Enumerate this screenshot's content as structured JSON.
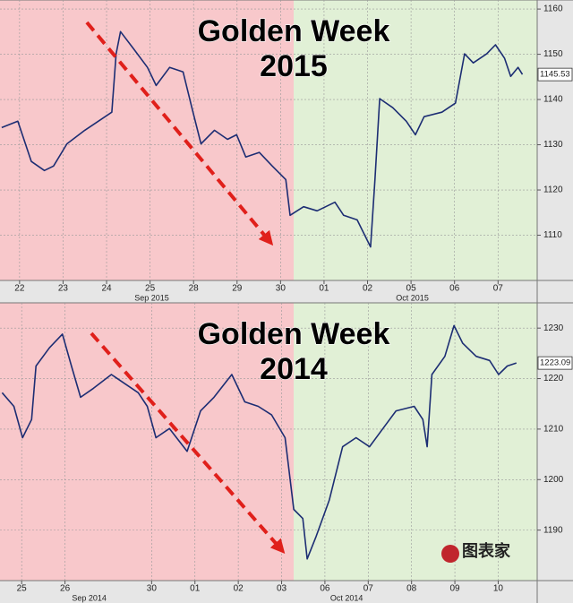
{
  "chart_data": [
    {
      "type": "line",
      "title": "Golden Week",
      "subtitle": "2015",
      "x": [
        -0.41,
        -0.04,
        0.27,
        0.57,
        0.78,
        1.09,
        1.5,
        1.81,
        2.12,
        2.22,
        2.32,
        2.63,
        2.94,
        3.14,
        3.45,
        3.76,
        3.96,
        4.17,
        4.48,
        4.78,
        4.99,
        5.2,
        5.51,
        5.81,
        6.12,
        6.22,
        6.53,
        6.84,
        7.25,
        7.45,
        7.76,
        8.07,
        8.17,
        8.28,
        8.58,
        8.89,
        9.1,
        9.3,
        9.71,
        10.02,
        10.23,
        10.43,
        10.74,
        10.94,
        11.15,
        11.29,
        11.46,
        11.56
      ],
      "values": [
        1133.8,
        1135.2,
        1126.3,
        1124.3,
        1125.3,
        1130.2,
        1133.2,
        1135.2,
        1137.2,
        1150.1,
        1155.0,
        1151.1,
        1147.1,
        1143.1,
        1147.1,
        1146.1,
        1138.2,
        1130.2,
        1133.2,
        1131.2,
        1132.2,
        1127.3,
        1128.3,
        1125.3,
        1122.3,
        1114.4,
        1116.3,
        1115.4,
        1117.3,
        1114.4,
        1113.4,
        1107.4,
        1122.3,
        1140.2,
        1138.2,
        1135.2,
        1132.2,
        1136.2,
        1137.2,
        1139.2,
        1150.1,
        1148.1,
        1150.1,
        1152.1,
        1149.1,
        1145.1,
        1147.1,
        1145.53
      ],
      "color": "#1c2d73",
      "xlim": [
        -0.45,
        11.9
      ],
      "xticks": [
        {
          "value": 0,
          "label": "22"
        },
        {
          "value": 1,
          "label": "23"
        },
        {
          "value": 2,
          "label": "24"
        },
        {
          "value": 3,
          "label": "25"
        },
        {
          "value": 4,
          "label": "28"
        },
        {
          "value": 5,
          "label": "29"
        },
        {
          "value": 6,
          "label": "30"
        },
        {
          "value": 7,
          "label": "01"
        },
        {
          "value": 8,
          "label": "02"
        },
        {
          "value": 9,
          "label": "05"
        },
        {
          "value": 10,
          "label": "06"
        },
        {
          "value": 11,
          "label": "07"
        }
      ],
      "month_labels": [
        {
          "value": 3.04,
          "label": "Sep 2015"
        },
        {
          "value": 9.03,
          "label": "Oct 2015"
        }
      ],
      "ylim": [
        1100,
        1162
      ],
      "yticks": [
        1110,
        1120,
        1130,
        1140,
        1150,
        1160
      ],
      "last_value": 1145.53,
      "grid": true
    },
    {
      "type": "line",
      "title": "Golden Week",
      "subtitle": "2014",
      "x": [
        -0.45,
        -0.18,
        0.02,
        0.23,
        0.33,
        0.64,
        0.94,
        1.15,
        1.36,
        1.66,
        2.07,
        2.38,
        2.69,
        2.9,
        3.1,
        3.41,
        3.82,
        4.13,
        4.44,
        4.85,
        5.15,
        5.46,
        5.77,
        6.08,
        6.28,
        6.49,
        6.59,
        6.8,
        7.1,
        7.41,
        7.72,
        8.03,
        8.34,
        8.64,
        9.06,
        9.26,
        9.36,
        9.47,
        9.77,
        9.98,
        10.18,
        10.49,
        10.8,
        11.01,
        11.21,
        11.42
      ],
      "values": [
        1217.2,
        1214.5,
        1208.3,
        1211.9,
        1222.5,
        1226.1,
        1228.8,
        1222.5,
        1216.3,
        1218.1,
        1220.8,
        1219.0,
        1217.2,
        1214.5,
        1208.3,
        1210.1,
        1205.6,
        1213.6,
        1216.3,
        1220.8,
        1215.4,
        1214.5,
        1212.8,
        1208.3,
        1194.1,
        1192.3,
        1184.3,
        1188.8,
        1195.9,
        1206.5,
        1208.3,
        1206.5,
        1210.1,
        1213.6,
        1214.5,
        1211.9,
        1206.5,
        1220.8,
        1224.4,
        1230.5,
        1227.0,
        1224.4,
        1223.6,
        1220.8,
        1222.5,
        1223.09
      ],
      "color": "#1c2d73",
      "xlim": [
        -0.5,
        11.9
      ],
      "xticks": [
        {
          "value": 0,
          "label": "25"
        },
        {
          "value": 1,
          "label": "26"
        },
        {
          "value": 3,
          "label": "30"
        },
        {
          "value": 4,
          "label": "01"
        },
        {
          "value": 5,
          "label": "02"
        },
        {
          "value": 6,
          "label": "03"
        },
        {
          "value": 7,
          "label": "06"
        },
        {
          "value": 8,
          "label": "07"
        },
        {
          "value": 9,
          "label": "08"
        },
        {
          "value": 10,
          "label": "09"
        },
        {
          "value": 11,
          "label": "10"
        }
      ],
      "month_labels": [
        {
          "value": 1.56,
          "label": "Sep 2014"
        },
        {
          "value": 7.5,
          "label": "Oct 2014"
        }
      ],
      "ylim": [
        1180,
        1235
      ],
      "yticks": [
        1190,
        1200,
        1210,
        1220,
        1230
      ],
      "last_value": 1223.09,
      "watermark": "图表家",
      "grid": true
    }
  ]
}
